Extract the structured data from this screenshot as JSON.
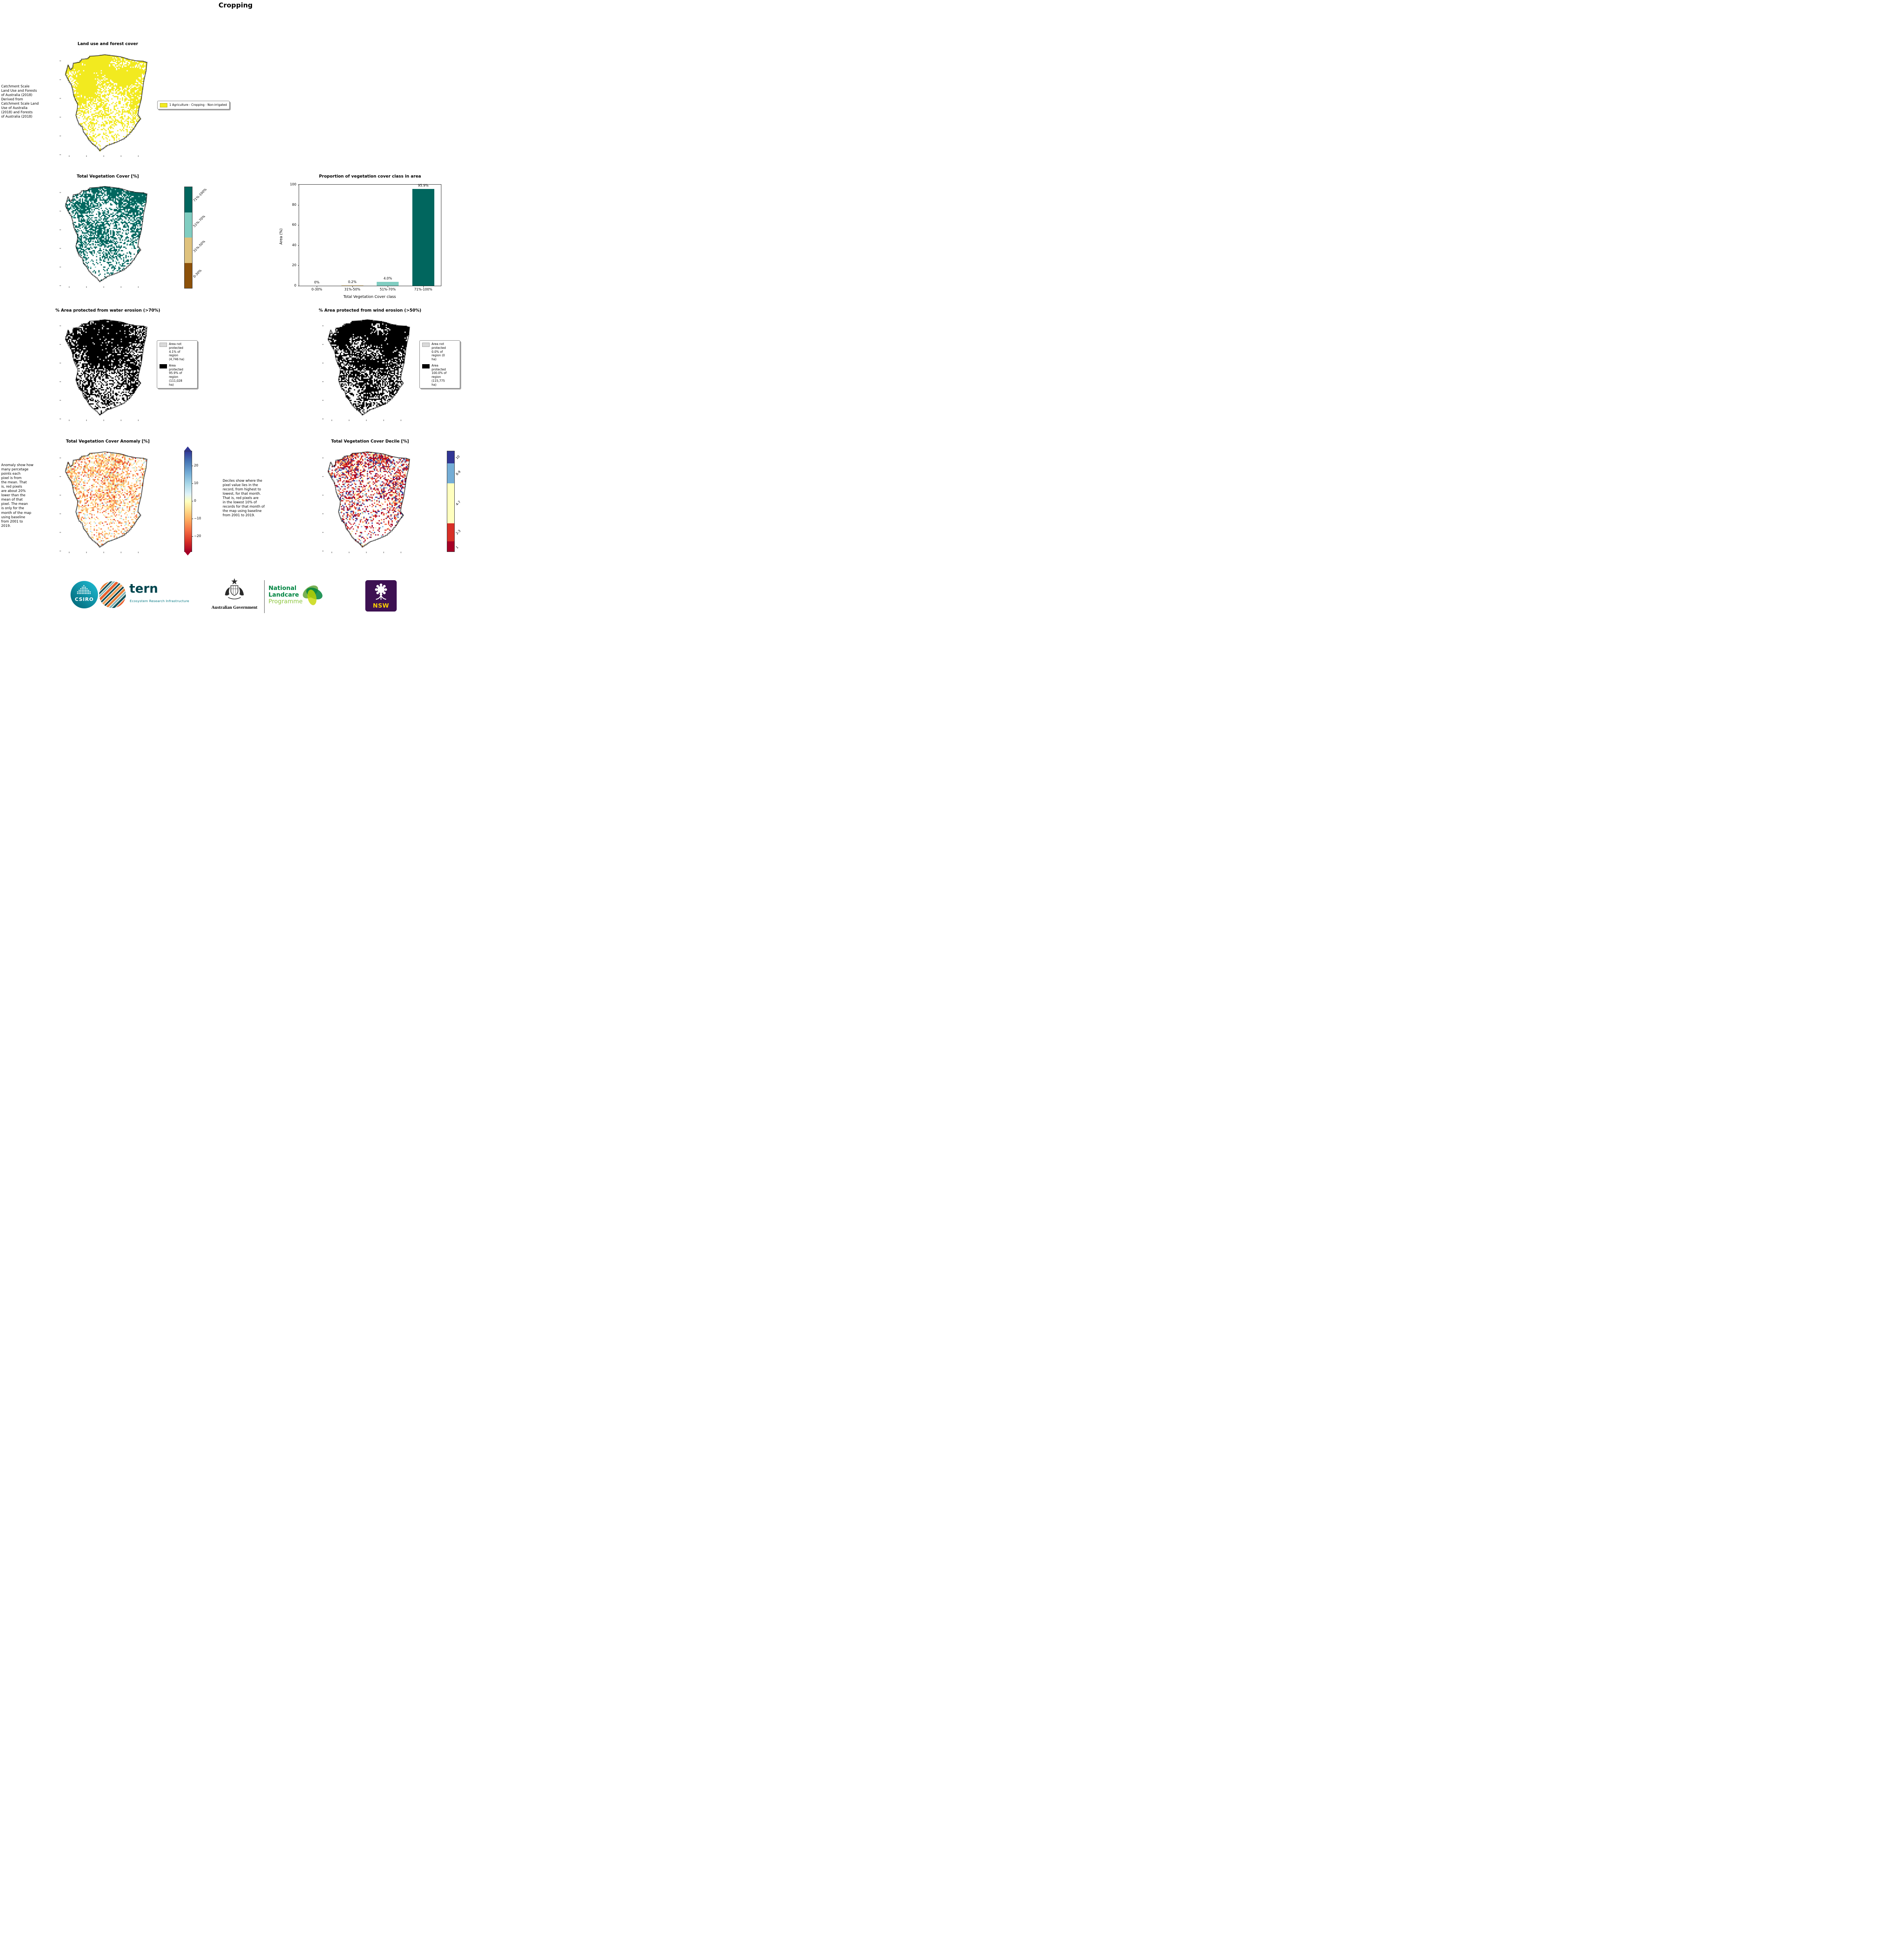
{
  "page_title": "Cropping",
  "land_use": {
    "title": "Land use and forest cover",
    "note": " Catchment Scale\nLand Use and Forests\nof Australia (2018)\nDerived from\nCatchment Scale Land\nUse of Australia\n(2018) and Forests\nof Australia (2018)",
    "legend_label": "1 Agriculture - Cropping - Non-irrigated",
    "legend_color": "#f2ea1f"
  },
  "veg_cover": {
    "title": "Total Vegetation Cover [%]",
    "classes": [
      "0-30%",
      "31%-50%",
      "51%-70%",
      "71%-100%"
    ],
    "class_colors": [
      "#8c510a",
      "#dfc27d",
      "#80cdc1",
      "#01665e"
    ]
  },
  "chart_data": {
    "type": "bar",
    "title": "Proportion of vegetation cover class in area",
    "categories": [
      "0-30%",
      "31%-50%",
      "51%-70%",
      "71%-100%"
    ],
    "values": [
      0,
      0.2,
      4.0,
      95.9
    ],
    "value_labels": [
      "0%",
      "0.2%",
      "4.0%",
      "95.9%"
    ],
    "bar_colors": [
      "#8c510a",
      "#dfc27d",
      "#80cdc1",
      "#01665e"
    ],
    "xlabel": "Total Vegetation Cover class",
    "ylabel": "Area (%)",
    "ylim": [
      0,
      100
    ],
    "yticks": [
      0,
      20,
      40,
      60,
      80,
      100
    ],
    "legend_position": "none",
    "grid": false
  },
  "water_erosion": {
    "title": "% Area protected from water erosion (>70%)",
    "legend": [
      {
        "label": "Area not\nprotected\n4.1% of\nregion\n(4,746 ha)",
        "color": "#d9d9d9"
      },
      {
        "label": "Area\nprotected\n95.9% of\nregion\n(111,028\nha)",
        "color": "#000000"
      }
    ]
  },
  "wind_erosion": {
    "title": "% Area protected from wind erosion (>50%)",
    "legend": [
      {
        "label": "Area not\nprotected\n0.0% of\nregion (0\nha)",
        "color": "#d9d9d9"
      },
      {
        "label": "Area\nprotected\n100.0% of\nregion\n(115,775\nha)",
        "color": "#000000"
      }
    ]
  },
  "anomaly": {
    "title": "Total Vegetation Cover Anomaly [%]",
    "note": "Anomaly show how\nmany percetage\npoints each\npixel is from\nthe mean. That\nis, red pixels\nare about 20%\nlower than the\nmean of that\npixel. The mean\nis only for the\nmonth of the map\nusing baseline\nfrom 2001 to\n2019.",
    "colorbar_ticks": [
      "20",
      "10",
      "0",
      "−10",
      "−20"
    ]
  },
  "decile": {
    "title": "Total Vegetation Cover Decile [%]",
    "note": "Deciles show where the\npixel value lies in the\nrecord, from highest to\nlowest, for that month.\nThat is, red pixels are\nin the lowest 10% of\nrecords for that month of\nthe map using baseline\nfrom 2001 to 2019.",
    "colorbar_labels": [
      "10",
      "8-9",
      "4-7",
      "2-3",
      "1"
    ],
    "colorbar_colors": [
      "#313695",
      "#74add6",
      "#ffffbf",
      "#d73027",
      "#a50026"
    ],
    "colorbar_heights": [
      12,
      20,
      40,
      18,
      10
    ]
  },
  "footer": {
    "csiro": "CSIRO",
    "tern": "tern",
    "tern_sub": "Ecosystem Research Infrastructure",
    "aus_gov": "Australian Government",
    "landcare_lines": [
      "National",
      "Landcare",
      "Programme"
    ],
    "nsw": "NSW"
  }
}
